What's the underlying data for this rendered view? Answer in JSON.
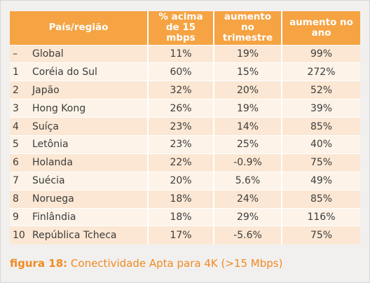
{
  "table": {
    "headers": [
      "País/região",
      "% acima de 15 mbps",
      "aumento no trimestre",
      "aumento no ano"
    ],
    "rows": [
      {
        "rank": "–",
        "country": "Global",
        "pct": "11%",
        "qoq": "19%",
        "yoy": "99%"
      },
      {
        "rank": "1",
        "country": "Coréia do Sul",
        "pct": "60%",
        "qoq": "15%",
        "yoy": "272%"
      },
      {
        "rank": "2",
        "country": "Japão",
        "pct": "32%",
        "qoq": "20%",
        "yoy": "52%"
      },
      {
        "rank": "3",
        "country": "Hong Kong",
        "pct": "26%",
        "qoq": "19%",
        "yoy": "39%"
      },
      {
        "rank": "4",
        "country": "Suíça",
        "pct": "23%",
        "qoq": "14%",
        "yoy": "85%"
      },
      {
        "rank": "5",
        "country": "Letônia",
        "pct": "23%",
        "qoq": "25%",
        "yoy": "40%"
      },
      {
        "rank": "6",
        "country": "Holanda",
        "pct": "22%",
        "qoq": "-0.9%",
        "yoy": "75%"
      },
      {
        "rank": "7",
        "country": "Suécia",
        "pct": "20%",
        "qoq": "5.6%",
        "yoy": "49%"
      },
      {
        "rank": "8",
        "country": "Noruega",
        "pct": "18%",
        "qoq": "24%",
        "yoy": "85%"
      },
      {
        "rank": "9",
        "country": "Finlândia",
        "pct": "18%",
        "qoq": "29%",
        "yoy": "116%"
      },
      {
        "rank": "10",
        "country": "República Tcheca",
        "pct": "17%",
        "qoq": "-5.6%",
        "yoy": "75%"
      }
    ]
  },
  "caption": {
    "lead": "figura 18:",
    "text": " Conectividade Apta para 4K (>15 Mbps)"
  },
  "colors": {
    "header_bg": "#f5a343",
    "row_dark": "#fbe7d3",
    "row_light": "#fdf3e8",
    "caption": "#f18a22"
  }
}
